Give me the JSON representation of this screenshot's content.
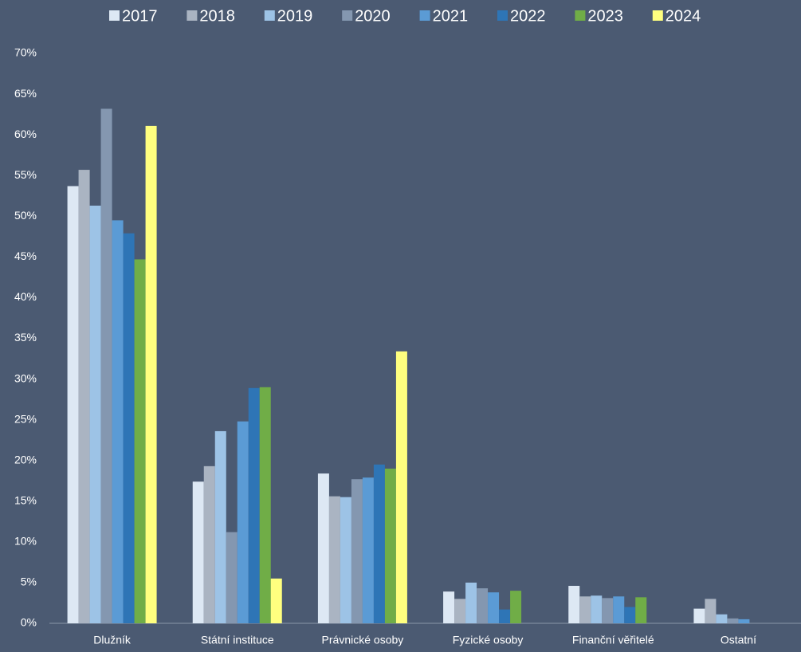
{
  "chart_data": {
    "type": "bar",
    "categories": [
      "Dlužník",
      "Státní instituce",
      "Právnické osoby",
      "Fyzické osoby",
      "Finanční věřitelé",
      "Ostatní"
    ],
    "series": [
      {
        "name": "2017",
        "color": "#dde8f4",
        "values": [
          53.7,
          17.4,
          18.4,
          3.9,
          4.6,
          1.8
        ]
      },
      {
        "name": "2018",
        "color": "#aab4c2",
        "values": [
          55.7,
          19.3,
          15.6,
          3.0,
          3.3,
          3.0
        ]
      },
      {
        "name": "2019",
        "color": "#9dc3e6",
        "values": [
          51.3,
          23.6,
          15.5,
          5.0,
          3.4,
          1.1
        ]
      },
      {
        "name": "2020",
        "color": "#8497b0",
        "values": [
          63.2,
          11.2,
          17.7,
          4.3,
          3.1,
          0.6
        ]
      },
      {
        "name": "2021",
        "color": "#5b9bd5",
        "values": [
          49.5,
          24.8,
          17.9,
          3.8,
          3.3,
          0.5
        ]
      },
      {
        "name": "2022",
        "color": "#2e75b6",
        "values": [
          47.9,
          28.9,
          19.5,
          1.7,
          2.0,
          null
        ]
      },
      {
        "name": "2023",
        "color": "#70ad47",
        "values": [
          44.7,
          29.0,
          19.0,
          4.0,
          3.2,
          null
        ]
      },
      {
        "name": "2024",
        "color": "#ffff7f",
        "values": [
          61.1,
          5.5,
          33.4,
          null,
          null,
          null
        ]
      }
    ],
    "ylim": [
      0,
      70
    ],
    "yticks": [
      {
        "value": 0,
        "label": "0%"
      },
      {
        "value": 5,
        "label": "5%"
      },
      {
        "value": 10,
        "label": "10%"
      },
      {
        "value": 15,
        "label": "15%"
      },
      {
        "value": 20,
        "label": "20%"
      },
      {
        "value": 25,
        "label": "25%"
      },
      {
        "value": 30,
        "label": "30%"
      },
      {
        "value": 35,
        "label": "35%"
      },
      {
        "value": 40,
        "label": "40%"
      },
      {
        "value": 45,
        "label": "45%"
      },
      {
        "value": 50,
        "label": "50%"
      },
      {
        "value": 55,
        "label": "55%"
      },
      {
        "value": 60,
        "label": "60%"
      },
      {
        "value": 65,
        "label": "65%"
      },
      {
        "value": 70,
        "label": "70%"
      }
    ],
    "legend": "top"
  }
}
